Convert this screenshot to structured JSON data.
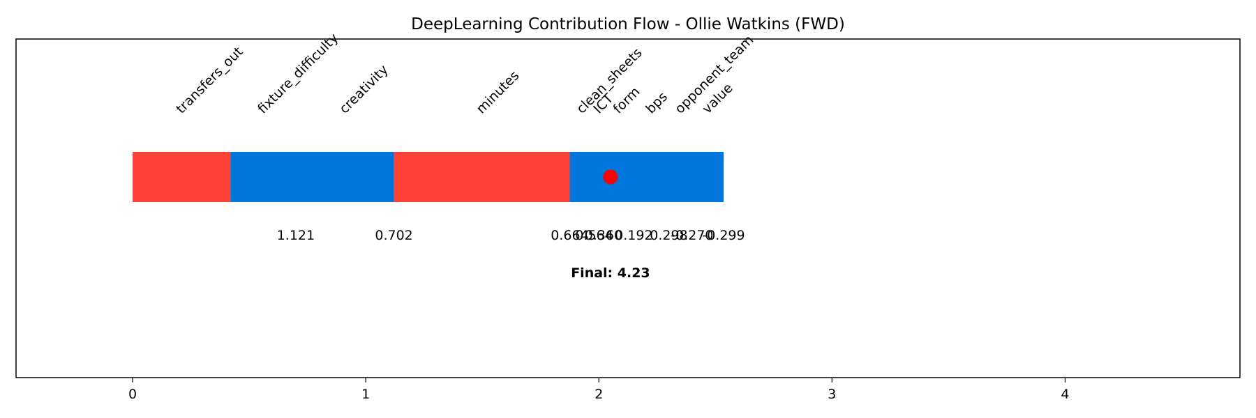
{
  "chart_data": {
    "type": "waterfall",
    "title": "DeepLearning Contribution Flow - Ollie Watkins (FWD)",
    "xlabel": "",
    "ylabel": "",
    "xlim": [
      -0.5,
      4.75
    ],
    "ylim": [
      -0.8,
      0.55
    ],
    "xticks": [
      0,
      1,
      2,
      3,
      4
    ],
    "colors": {
      "positive": "#0075DC",
      "negative": "#FF4136",
      "marker": "#FF0000"
    },
    "features": [
      {
        "name": "transfers_out",
        "start": 0.0,
        "end": 0.42,
        "value_label": ""
      },
      {
        "name": "fixture_difficulty",
        "start": 0.42,
        "end": 0.7,
        "value_label": "1.121"
      },
      {
        "name": "creativity",
        "start": 0.7,
        "end": 1.121,
        "value_label": "0.702"
      },
      {
        "name": "minutes",
        "start": 1.121,
        "end": 1.875,
        "value_label": "0.664"
      },
      {
        "name": "clean_sheets",
        "start": 1.875,
        "end": 1.98,
        "value_label": "0.564"
      },
      {
        "name": "ICT",
        "start": 1.98,
        "end": 2.02,
        "value_label": "0.360"
      },
      {
        "name": "form",
        "start": 2.02,
        "end": 2.15,
        "value_label": "0.192"
      },
      {
        "name": "bps",
        "start": 2.15,
        "end": 2.3,
        "value_label": "0.298"
      },
      {
        "name": "opponent_team",
        "start": 2.3,
        "end": 2.4,
        "value_label": "-0.270"
      },
      {
        "name": "value",
        "start": 2.4,
        "end": 2.535,
        "value_label": "-0.299"
      }
    ],
    "bar_segments": [
      {
        "start": 0.0,
        "end": 0.42,
        "sign": "negative"
      },
      {
        "start": 0.42,
        "end": 1.121,
        "sign": "positive"
      },
      {
        "start": 1.121,
        "end": 1.875,
        "sign": "negative"
      },
      {
        "start": 1.875,
        "end": 2.535,
        "sign": "positive"
      }
    ],
    "marker_x": 2.05,
    "final_label": "Final: 4.23"
  }
}
